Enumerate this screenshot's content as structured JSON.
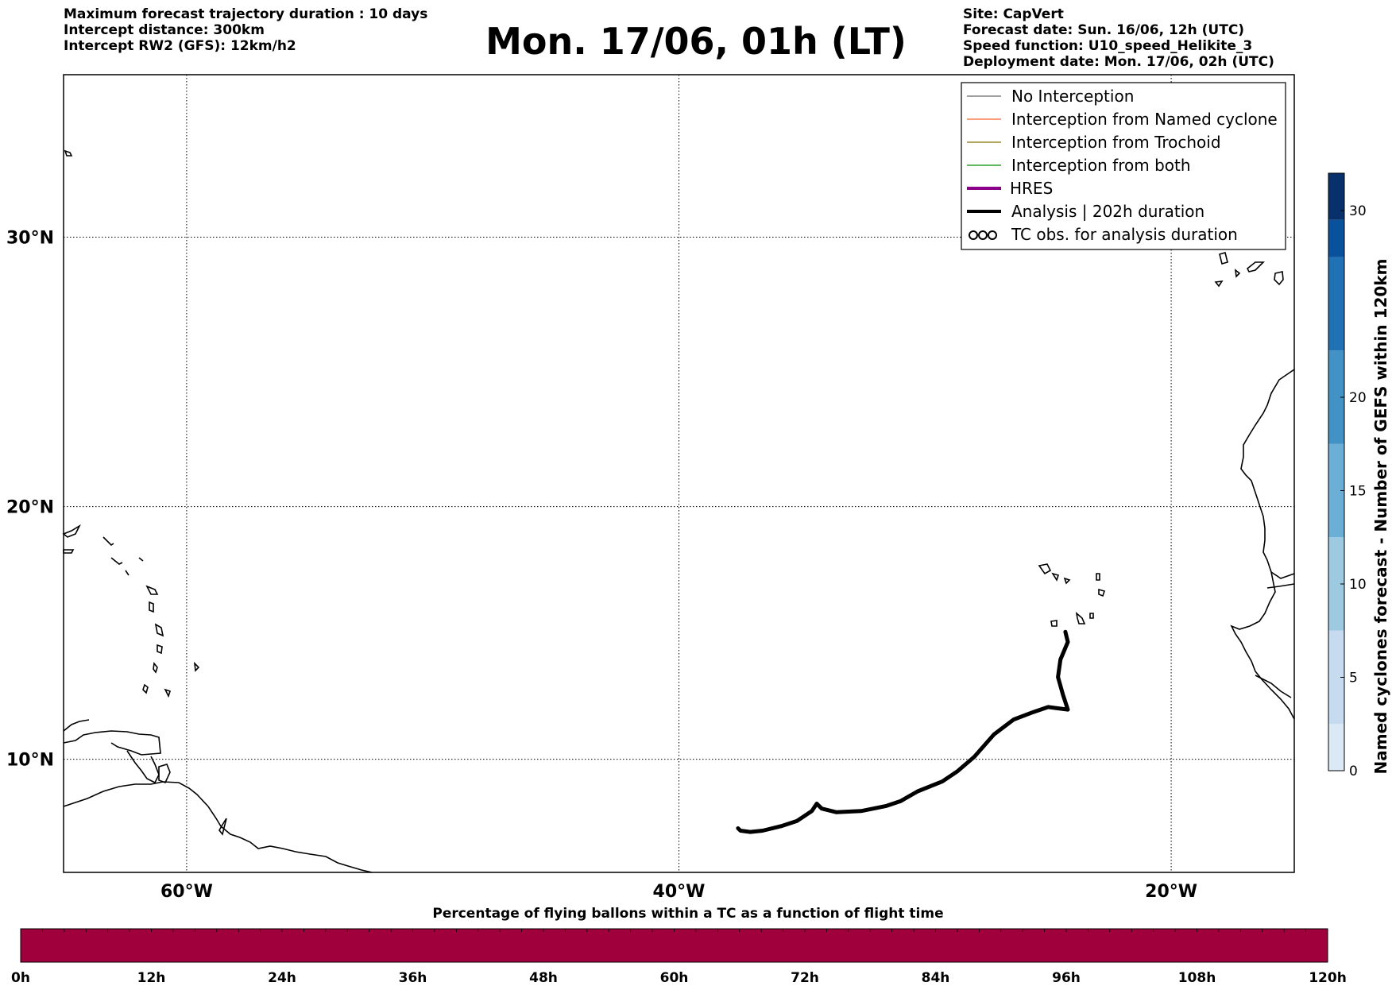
{
  "header": {
    "left_lines": [
      "Maximum forecast trajectory duration : 10 days",
      "Intercept distance: 300km",
      "Intercept RW2 (GFS):  12km/h2"
    ],
    "title": "Mon. 17/06, 01h (LT)",
    "right_lines": [
      "Site: CapVert",
      "Forecast date: Sun. 16/06, 12h (UTC)",
      "Speed function: U10_speed_Helikite_3",
      "Deployment date: Mon. 17/06, 02h (UTC)"
    ]
  },
  "map": {
    "lat_labels": [
      "30°N",
      "20°N",
      "10°N"
    ],
    "lon_labels": [
      "60°W",
      "40°W",
      "20°W"
    ],
    "lat_grid_values": [
      30,
      20,
      10
    ],
    "lon_grid_values": [
      -60,
      -40,
      -20
    ],
    "extent": {
      "lon_min": -65,
      "lon_max": -15,
      "lat_min": 5.4,
      "lat_max": 35.6
    }
  },
  "legend": {
    "items": [
      {
        "label": "No Interception",
        "color": "#808080",
        "style": "thin"
      },
      {
        "label": "Interception from Named cyclone",
        "color": "#ff7f50",
        "style": "thin"
      },
      {
        "label": "Interception from Trochoid",
        "color": "#9a8a2a",
        "style": "thin"
      },
      {
        "label": "Interception from both",
        "color": "#2ca02c",
        "style": "thin"
      },
      {
        "label": "HRES",
        "color": "#8b008b",
        "style": "thick"
      },
      {
        "label": "Analysis | 202h duration",
        "color": "#000000",
        "style": "thick"
      },
      {
        "label": "TC obs. for analysis duration",
        "color": "#000000",
        "style": "symbol"
      }
    ]
  },
  "colorbar_right": {
    "label": "Named cyclones forecast - Number of GEFS within 120km",
    "ticks": [
      "0",
      "5",
      "10",
      "15",
      "20",
      "30"
    ],
    "colors": [
      "#dbe8f5",
      "#c6dbef",
      "#9ecae1",
      "#6baed6",
      "#4292c6",
      "#2171b5",
      "#08519c",
      "#08306b"
    ]
  },
  "colorbar_bottom": {
    "title": "Percentage of flying ballons within a TC as a function of flight time",
    "ticks": [
      "0h",
      "12h",
      "24h",
      "36h",
      "48h",
      "60h",
      "72h",
      "84h",
      "96h",
      "108h",
      "120h"
    ],
    "fill_color": "#a0003c"
  },
  "trajectory": {
    "name": "Analysis",
    "points_lonlat": [
      [
        -24.3,
        15.1
      ],
      [
        -24.2,
        14.7
      ],
      [
        -24.5,
        14.0
      ],
      [
        -24.6,
        13.3
      ],
      [
        -24.4,
        12.6
      ],
      [
        -24.2,
        12.0
      ],
      [
        -25.0,
        12.1
      ],
      [
        -25.6,
        11.9
      ],
      [
        -26.4,
        11.6
      ],
      [
        -27.2,
        11.0
      ],
      [
        -28.0,
        10.1
      ],
      [
        -28.7,
        9.5
      ],
      [
        -29.3,
        9.1
      ],
      [
        -30.3,
        8.7
      ],
      [
        -31.0,
        8.3
      ],
      [
        -31.6,
        8.1
      ],
      [
        -32.6,
        7.9
      ],
      [
        -33.6,
        7.85
      ],
      [
        -34.2,
        8.0
      ],
      [
        -34.4,
        8.2
      ],
      [
        -34.6,
        7.9
      ],
      [
        -35.2,
        7.5
      ],
      [
        -35.8,
        7.3
      ],
      [
        -36.6,
        7.1
      ],
      [
        -37.1,
        7.05
      ],
      [
        -37.5,
        7.1
      ],
      [
        -37.6,
        7.2
      ]
    ]
  }
}
